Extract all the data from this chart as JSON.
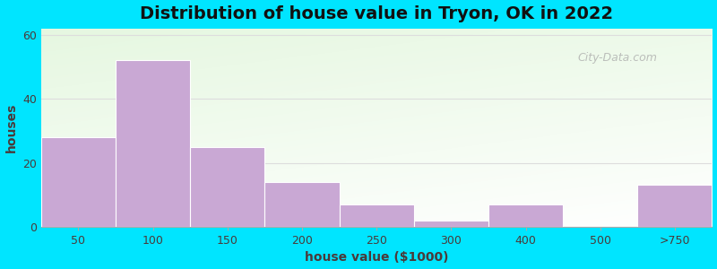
{
  "title": "Distribution of house value in Tryon, OK in 2022",
  "xlabel": "house value ($1000)",
  "ylabel": "houses",
  "bar_labels": [
    "50",
    "100",
    "150",
    "200",
    "250",
    "300",
    "400",
    "500",
    ">750"
  ],
  "bar_values": [
    28,
    52,
    25,
    14,
    7,
    2,
    7,
    0,
    13
  ],
  "bar_color": "#c9a8d4",
  "bar_edgecolor": "#ffffff",
  "yticks": [
    0,
    20,
    40,
    60
  ],
  "ylim": [
    0,
    62
  ],
  "bg_outer": "#00e5ff",
  "title_fontsize": 14,
  "axis_label_fontsize": 10,
  "tick_fontsize": 9,
  "watermark_text": "City-Data.com",
  "grid_color": "#dddddd",
  "text_color": "#4a3a3a"
}
